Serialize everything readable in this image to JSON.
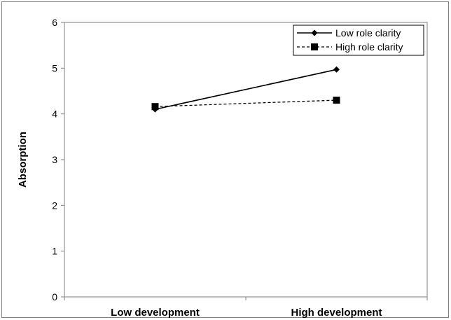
{
  "chart_data": {
    "type": "line",
    "title": "",
    "xlabel": "",
    "ylabel": "Absorption",
    "categories": [
      "Low development",
      "High development"
    ],
    "ylim": [
      0,
      6
    ],
    "yticks": [
      0,
      1,
      2,
      3,
      4,
      5,
      6
    ],
    "grid": false,
    "legend_position": "top-right",
    "series": [
      {
        "name": "Low role clarity",
        "values": [
          4.1,
          4.97
        ],
        "marker": "diamond",
        "line": "solid",
        "color": "#000000"
      },
      {
        "name": "High role clarity",
        "values": [
          4.16,
          4.3
        ],
        "marker": "square",
        "line": "dashed",
        "color": "#000000"
      }
    ]
  }
}
